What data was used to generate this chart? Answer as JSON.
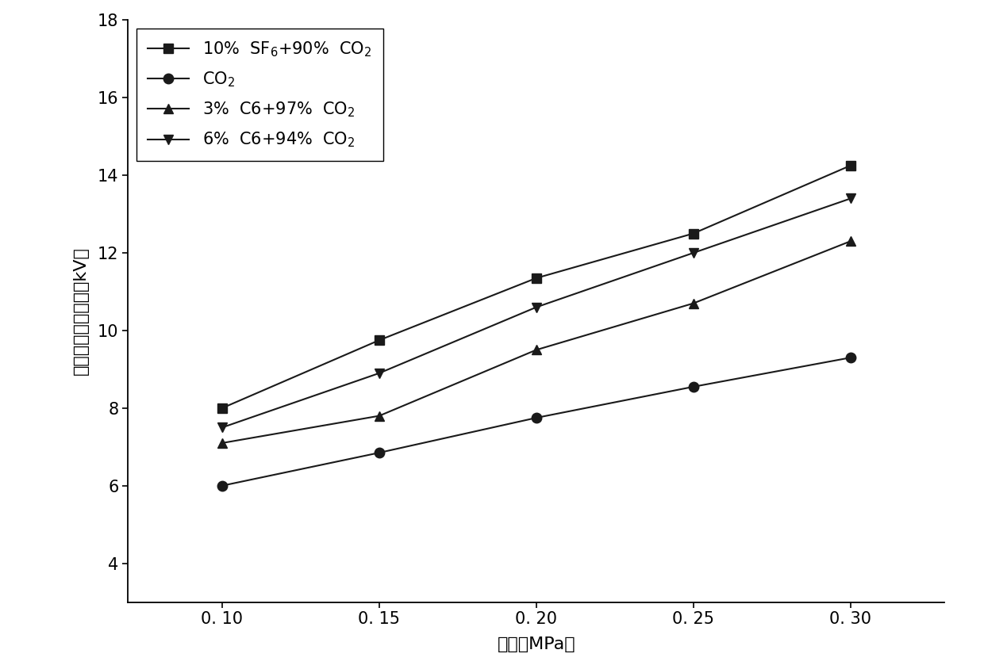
{
  "x": [
    0.1,
    0.15,
    0.2,
    0.25,
    0.3
  ],
  "series": [
    {
      "label_parts": [
        "10%  SF",
        "6",
        "+90%  CO",
        "2"
      ],
      "label_type": "sf6_co2",
      "y": [
        8.0,
        9.75,
        11.35,
        12.5,
        14.25
      ],
      "marker": "s",
      "color": "#1a1a1a"
    },
    {
      "label_parts": [
        "CO",
        "2"
      ],
      "label_type": "co2",
      "y": [
        6.0,
        6.85,
        7.75,
        8.55,
        9.3
      ],
      "marker": "o",
      "color": "#1a1a1a"
    },
    {
      "label_parts": [
        "3%  C6+97%  CO",
        "2"
      ],
      "label_type": "c6_co2_3",
      "y": [
        7.1,
        7.8,
        9.5,
        10.7,
        12.3
      ],
      "marker": "^",
      "color": "#1a1a1a"
    },
    {
      "label_parts": [
        "6%  C6+94%  CO",
        "2"
      ],
      "label_type": "c6_co2_6",
      "y": [
        7.5,
        8.9,
        10.6,
        12.0,
        13.4
      ],
      "marker": "v",
      "color": "#1a1a1a"
    }
  ],
  "xlabel": "气压（MPa）",
  "ylabel": "局部放电起始电压（kV）",
  "xlim": [
    0.07,
    0.33
  ],
  "ylim": [
    3,
    18
  ],
  "yticks": [
    4,
    6,
    8,
    10,
    12,
    14,
    16,
    18
  ],
  "xticks": [
    0.1,
    0.15,
    0.2,
    0.25,
    0.3
  ],
  "xtick_labels": [
    "0. 10",
    "0. 15",
    "0. 20",
    "0. 25",
    "0. 30"
  ],
  "background_color": "#ffffff",
  "linewidth": 1.5,
  "markersize": 9,
  "legend_fontsize": 15,
  "axis_fontsize": 16,
  "tick_fontsize": 15
}
